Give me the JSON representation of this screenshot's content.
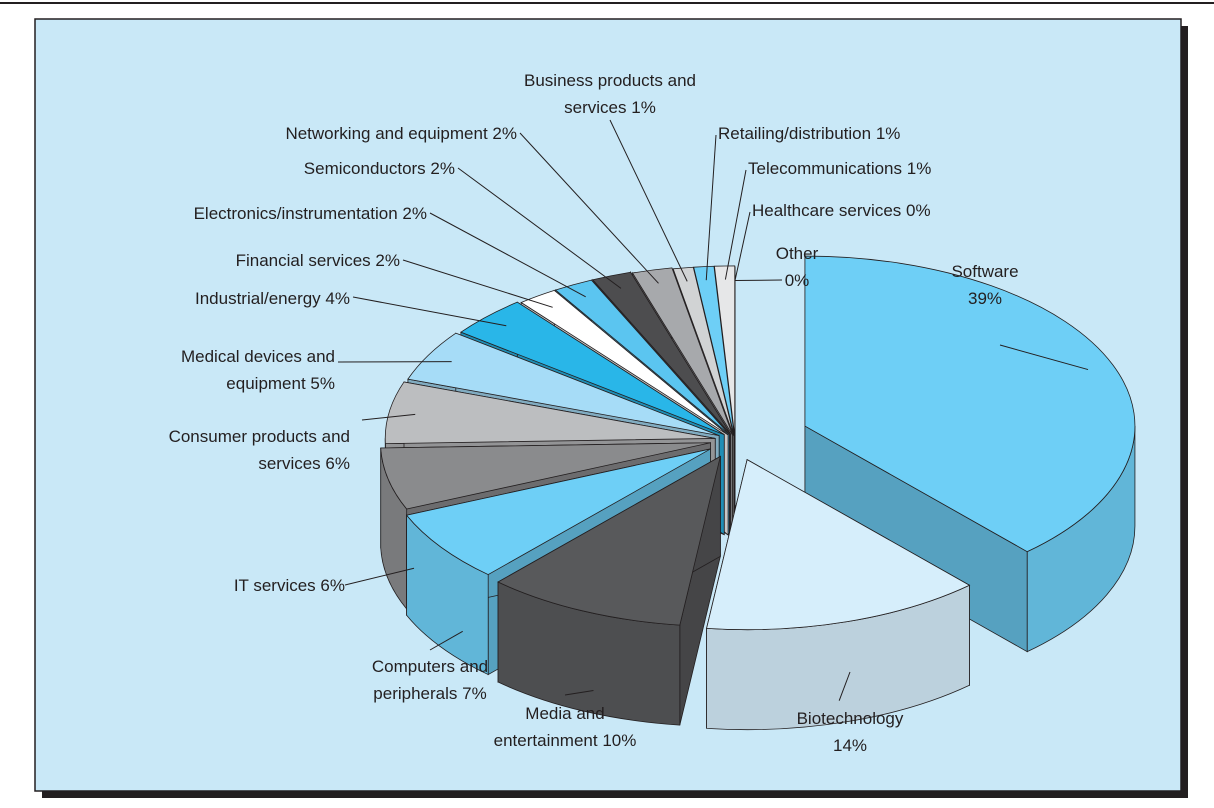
{
  "chart_data": {
    "type": "pie",
    "categories": [
      "Software",
      "Biotechnology",
      "Media and entertainment",
      "Computers and peripherals",
      "IT services",
      "Consumer products and services",
      "Medical devices and equipment",
      "Industrial/energy",
      "Financial services",
      "Electronics/instrumentation",
      "Semiconductors",
      "Networking and equipment",
      "Business products and services",
      "Retailing/distribution",
      "Telecommunications",
      "Healthcare services",
      "Other"
    ],
    "values": [
      39,
      14,
      10,
      7,
      6,
      6,
      5,
      4,
      2,
      2,
      2,
      2,
      1,
      1,
      1,
      0,
      0
    ],
    "value_labels": [
      "39%",
      "14%",
      "10%",
      "7%",
      "6%",
      "6%",
      "5%",
      "4%",
      "2%",
      "2%",
      "2%",
      "2%",
      "1%",
      "1%",
      "1%",
      "0%",
      "0%"
    ],
    "colors": [
      "#6ecff6",
      "#d6eefb",
      "#58595b",
      "#6ecff6",
      "#8a8b8d",
      "#bcbec0",
      "#a6dcf7",
      "#29b6e8",
      "#ffffff",
      "#5bc5f0",
      "#4d4d4f",
      "#a7a9ac",
      "#d1d3d4",
      "#6ecff6",
      "#e6e7e8",
      "#d1d3d4",
      "#e6e7e8"
    ]
  }
}
